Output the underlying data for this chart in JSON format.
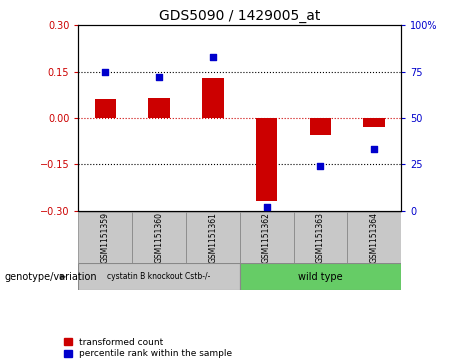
{
  "title": "GDS5090 / 1429005_at",
  "samples": [
    "GSM1151359",
    "GSM1151360",
    "GSM1151361",
    "GSM1151362",
    "GSM1151363",
    "GSM1151364"
  ],
  "red_values": [
    0.06,
    0.065,
    0.13,
    -0.27,
    -0.055,
    -0.03
  ],
  "blue_values": [
    75,
    72,
    83,
    2,
    24,
    33
  ],
  "ylim_left": [
    -0.3,
    0.3
  ],
  "ylim_right": [
    0,
    100
  ],
  "yticks_left": [
    -0.3,
    -0.15,
    0,
    0.15,
    0.3
  ],
  "yticks_right": [
    0,
    25,
    50,
    75,
    100
  ],
  "red_color": "#cc0000",
  "blue_color": "#0000cc",
  "zero_line_color": "#cc0000",
  "dotted_line_color": "#000000",
  "group1_label": "cystatin B knockout Cstb-/-",
  "group2_label": "wild type",
  "group1_count": 3,
  "group2_count": 3,
  "group1_bg": "#c8c8c8",
  "group2_bg": "#66cc66",
  "legend_red": "transformed count",
  "legend_blue": "percentile rank within the sample",
  "genotype_label": "genotype/variation",
  "bar_width": 0.4
}
